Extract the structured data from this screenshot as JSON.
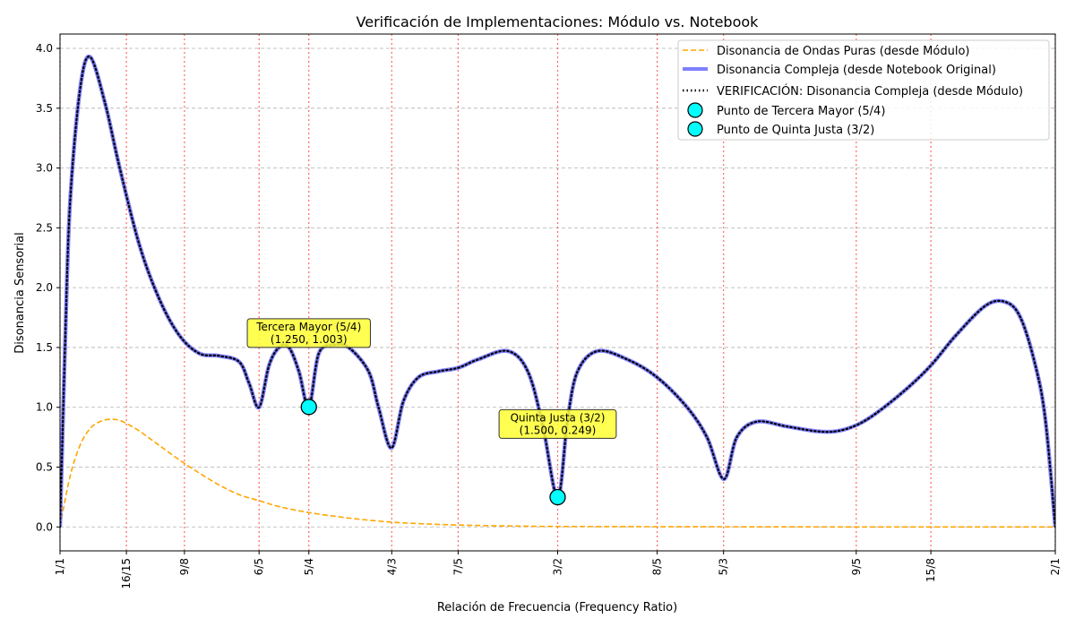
{
  "chart_data": {
    "type": "line",
    "title": "Verificación de Implementaciones: Módulo vs. Notebook",
    "xlabel": "Relación de Frecuencia (Frequency Ratio)",
    "ylabel": "Disonancia Sensorial",
    "xlim": [
      1.0,
      2.0
    ],
    "ylim": [
      -0.2,
      4.12
    ],
    "grid": "y-dashed",
    "legend_position": "top-right",
    "x_ticks": [
      {
        "value": 1.0,
        "label": "1/1"
      },
      {
        "value": 1.0667,
        "label": "16/15"
      },
      {
        "value": 1.125,
        "label": "9/8"
      },
      {
        "value": 1.2,
        "label": "6/5"
      },
      {
        "value": 1.25,
        "label": "5/4"
      },
      {
        "value": 1.3333,
        "label": "4/3"
      },
      {
        "value": 1.4,
        "label": "7/5"
      },
      {
        "value": 1.5,
        "label": "3/2"
      },
      {
        "value": 1.6,
        "label": "8/5"
      },
      {
        "value": 1.6667,
        "label": "5/3"
      },
      {
        "value": 1.8,
        "label": "9/5"
      },
      {
        "value": 1.875,
        "label": "15/8"
      },
      {
        "value": 2.0,
        "label": "2/1"
      }
    ],
    "y_ticks": [
      {
        "value": 0.0,
        "label": "0.0"
      },
      {
        "value": 0.5,
        "label": "0.5"
      },
      {
        "value": 1.0,
        "label": "1.0"
      },
      {
        "value": 1.5,
        "label": "1.5"
      },
      {
        "value": 2.0,
        "label": "2.0"
      },
      {
        "value": 2.5,
        "label": "2.5"
      },
      {
        "value": 3.0,
        "label": "3.0"
      },
      {
        "value": 3.5,
        "label": "3.5"
      },
      {
        "value": 4.0,
        "label": "4.0"
      }
    ],
    "series": [
      {
        "name": "Disonancia de Ondas Puras (desde Módulo)",
        "color": "#ffa500",
        "style": "dashed",
        "x": [
          1.0,
          1.01,
          1.02,
          1.03,
          1.04,
          1.05,
          1.06,
          1.07,
          1.08,
          1.09,
          1.1,
          1.12,
          1.14,
          1.16,
          1.18,
          1.2,
          1.22,
          1.25,
          1.28,
          1.3,
          1.33,
          1.36,
          1.4,
          1.45,
          1.5,
          1.6,
          1.7,
          1.8,
          1.9,
          2.0
        ],
        "y": [
          0.0,
          0.42,
          0.68,
          0.82,
          0.88,
          0.9,
          0.89,
          0.85,
          0.8,
          0.74,
          0.68,
          0.56,
          0.45,
          0.35,
          0.27,
          0.22,
          0.17,
          0.12,
          0.085,
          0.065,
          0.042,
          0.028,
          0.016,
          0.008,
          0.004,
          0.002,
          0.001,
          0.0,
          0.0,
          0.0
        ]
      },
      {
        "name": "Disonancia Compleja (desde Notebook Original)",
        "color": "#7f7fff",
        "style": "solid-thick",
        "x": [
          1.0,
          1.005,
          1.01,
          1.02,
          1.03,
          1.045,
          1.06,
          1.08,
          1.1,
          1.12,
          1.14,
          1.16,
          1.18,
          1.19,
          1.2,
          1.21,
          1.22,
          1.23,
          1.24,
          1.25,
          1.26,
          1.275,
          1.29,
          1.31,
          1.32,
          1.333,
          1.345,
          1.36,
          1.38,
          1.4,
          1.42,
          1.45,
          1.47,
          1.485,
          1.5,
          1.51,
          1.52,
          1.54,
          1.57,
          1.6,
          1.63,
          1.65,
          1.667,
          1.68,
          1.7,
          1.73,
          1.76,
          1.78,
          1.8,
          1.82,
          1.85,
          1.875,
          1.9,
          1.93,
          1.95,
          1.965,
          1.98,
          1.99,
          2.0
        ],
        "y": [
          0.0,
          1.5,
          2.7,
          3.65,
          3.93,
          3.55,
          3.0,
          2.35,
          1.9,
          1.6,
          1.45,
          1.43,
          1.38,
          1.2,
          1.0,
          1.35,
          1.5,
          1.5,
          1.3,
          1.003,
          1.45,
          1.52,
          1.5,
          1.3,
          1.0,
          0.66,
          1.05,
          1.25,
          1.3,
          1.33,
          1.4,
          1.47,
          1.3,
          0.85,
          0.249,
          0.9,
          1.3,
          1.47,
          1.4,
          1.25,
          1.0,
          0.75,
          0.4,
          0.75,
          0.88,
          0.84,
          0.8,
          0.8,
          0.85,
          0.95,
          1.15,
          1.35,
          1.6,
          1.85,
          1.88,
          1.75,
          1.35,
          0.9,
          0.0
        ]
      },
      {
        "name": "VERIFICACIÓN: Disonancia Compleja (desde Módulo)",
        "color": "#000000",
        "style": "dotted",
        "same_as": "Disonancia Compleja (desde Notebook Original)"
      }
    ],
    "markers": [
      {
        "name": "Punto de Tercera Mayor (5/4)",
        "x": 1.25,
        "y": 1.003,
        "color": "#00ffff"
      },
      {
        "name": "Punto de Quinta Justa (3/2)",
        "x": 1.5,
        "y": 0.249,
        "color": "#00ffff"
      }
    ],
    "annotations": [
      {
        "line1": "Tercera Mayor (5/4)",
        "line2": "(1.250, 1.003)",
        "x": 1.25,
        "y": 1.003,
        "text_x": 1.25,
        "text_y": 1.62
      },
      {
        "line1": "Quinta Justa (3/2)",
        "line2": "(1.500, 0.249)",
        "x": 1.5,
        "y": 0.249,
        "text_x": 1.5,
        "text_y": 0.86
      }
    ]
  }
}
